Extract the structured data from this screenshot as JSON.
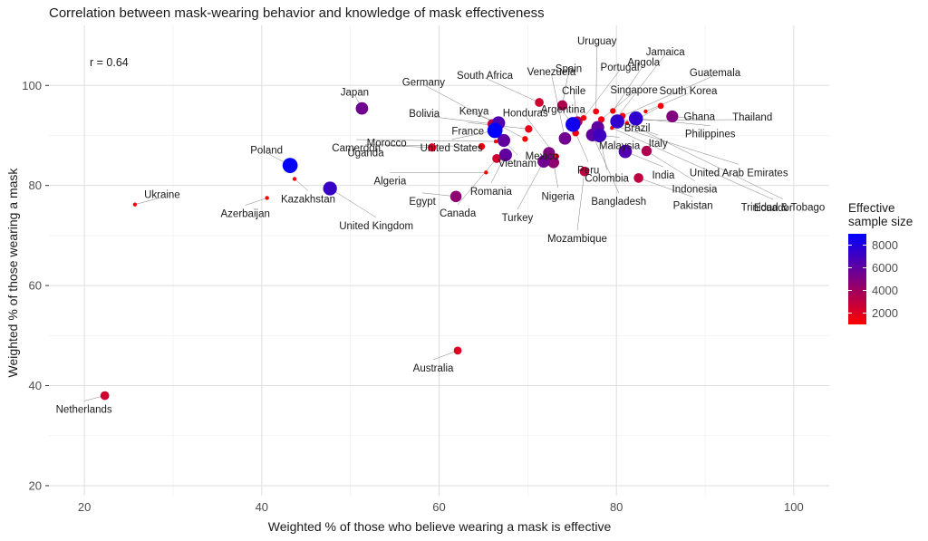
{
  "chart_data": {
    "type": "scatter",
    "title": "Correlation between mask-wearing behavior and knowledge of mask effectiveness",
    "xlabel": "Weighted % of those who believe wearing a mask is effective",
    "ylabel": "Weighted % of those wearing a mask",
    "xlim": [
      16,
      104
    ],
    "ylim": [
      18,
      112
    ],
    "x_ticks": [
      20,
      40,
      60,
      80,
      100
    ],
    "y_ticks": [
      20,
      40,
      60,
      80,
      100
    ],
    "grid": true,
    "annotation": "r = 0.64",
    "legend": {
      "title_lines": [
        "Effective",
        "sample size"
      ],
      "position": "right",
      "ticks": [
        2000,
        4000,
        6000,
        8000
      ],
      "range": [
        1000,
        9000
      ],
      "color_low": "#ff0000",
      "color_high": "#0000ff"
    },
    "points": [
      {
        "name": "Netherlands",
        "x": 22.3,
        "y": 38.0,
        "n": 2500
      },
      {
        "name": "Ukraine",
        "x": 25.7,
        "y": 76.2,
        "n": 1000
      },
      {
        "name": "Azerbaijan",
        "x": 40.6,
        "y": 77.5,
        "n": 1000
      },
      {
        "name": "Poland",
        "x": 43.2,
        "y": 84.0,
        "n": 8900
      },
      {
        "name": "Kazakhstan",
        "x": 43.7,
        "y": 81.3,
        "n": 1000
      },
      {
        "name": "United Kingdom",
        "x": 47.7,
        "y": 79.4,
        "n": 7200
      },
      {
        "name": "Japan",
        "x": 51.3,
        "y": 95.4,
        "n": 5500
      },
      {
        "name": "Morocco",
        "x": 59.2,
        "y": 87.6,
        "n": 2200
      },
      {
        "name": "Egypt",
        "x": 61.9,
        "y": 77.8,
        "n": 4500
      },
      {
        "name": "Australia",
        "x": 62.1,
        "y": 47.0,
        "n": 2000
      },
      {
        "name": "Algeria",
        "x": 65.3,
        "y": 82.6,
        "n": 1000
      },
      {
        "name": "Uganda",
        "x": 64.8,
        "y": 87.8,
        "n": 1500
      },
      {
        "name": "Bolivia",
        "x": 66.0,
        "y": 92.3,
        "n": 3000
      },
      {
        "name": "United States",
        "x": 66.3,
        "y": 91.0,
        "n": 9000
      },
      {
        "name": "Canada",
        "x": 66.5,
        "y": 85.4,
        "n": 2500
      },
      {
        "name": "Kenya",
        "x": 66.7,
        "y": 92.5,
        "n": 6500
      },
      {
        "name": "Cameroon",
        "x": 66.4,
        "y": 88.8,
        "n": 1000
      },
      {
        "name": "Romania",
        "x": 67.5,
        "y": 86.1,
        "n": 6000
      },
      {
        "name": "Vietnam",
        "x": 67.3,
        "y": 89.0,
        "n": 6000
      },
      {
        "name": "Germany",
        "x": 69.7,
        "y": 89.3,
        "n": 1200
      },
      {
        "name": "France",
        "x": 70.1,
        "y": 91.3,
        "n": 1800
      },
      {
        "name": "South Africa",
        "x": 71.3,
        "y": 96.6,
        "n": 2500
      },
      {
        "name": "Turkey",
        "x": 71.8,
        "y": 84.8,
        "n": 5500
      },
      {
        "name": "Mexico",
        "x": 72.4,
        "y": 86.5,
        "n": 5000
      },
      {
        "name": "Nigeria",
        "x": 72.9,
        "y": 84.6,
        "n": 4500
      },
      {
        "name": "Honduras",
        "x": 73.2,
        "y": 85.8,
        "n": 1300
      },
      {
        "name": "Venezuela",
        "x": 74.2,
        "y": 89.4,
        "n": 5500
      },
      {
        "name": "Spain",
        "x": 73.9,
        "y": 96.0,
        "n": 3500
      },
      {
        "name": "Argentina",
        "x": 75.1,
        "y": 92.2,
        "n": 8500
      },
      {
        "name": "Peru",
        "x": 75.4,
        "y": 90.5,
        "n": 1500
      },
      {
        "name": "Chile",
        "x": 75.6,
        "y": 92.8,
        "n": 3500
      },
      {
        "name": "Portugal",
        "x": 76.3,
        "y": 93.5,
        "n": 1200
      },
      {
        "name": "Mozambique",
        "x": 76.4,
        "y": 82.8,
        "n": 3000
      },
      {
        "name": "Bangladesh",
        "x": 77.3,
        "y": 90.1,
        "n": 6000
      },
      {
        "name": "Uruguay",
        "x": 77.7,
        "y": 94.8,
        "n": 1300
      },
      {
        "name": "Colombia",
        "x": 77.9,
        "y": 91.6,
        "n": 6000
      },
      {
        "name": "Malaysia",
        "x": 78.1,
        "y": 90.0,
        "n": 7000
      },
      {
        "name": "Singapore",
        "x": 78.3,
        "y": 93.2,
        "n": 1400
      },
      {
        "name": "Angola",
        "x": 79.6,
        "y": 94.9,
        "n": 1200
      },
      {
        "name": "Jamaica",
        "x": 79.9,
        "y": 93.2,
        "n": 1000
      },
      {
        "name": "Italy",
        "x": 80.1,
        "y": 92.8,
        "n": 7500
      },
      {
        "name": "Guatemala",
        "x": 80.7,
        "y": 93.9,
        "n": 1300
      },
      {
        "name": "India",
        "x": 81.0,
        "y": 86.8,
        "n": 6500
      },
      {
        "name": "Philippines",
        "x": 82.2,
        "y": 93.4,
        "n": 7500
      },
      {
        "name": "Pakistan",
        "x": 82.5,
        "y": 81.5,
        "n": 3000
      },
      {
        "name": "Indonesia",
        "x": 83.4,
        "y": 86.9,
        "n": 3500
      },
      {
        "name": "South Korea",
        "x": 83.3,
        "y": 94.8,
        "n": 1000
      },
      {
        "name": "Brazil",
        "x": 85.0,
        "y": 95.9,
        "n": 1300
      },
      {
        "name": "Trinidad & Tobago",
        "x": 81.2,
        "y": 92.5,
        "n": 1000
      },
      {
        "name": "Ghana",
        "x": 86.3,
        "y": 93.8,
        "n": 5000
      },
      {
        "name": "Thailand",
        "x": 80.0,
        "y": 93.0,
        "n": 1000
      },
      {
        "name": "United Arab Emirates",
        "x": 79.7,
        "y": 92.0,
        "n": 1000
      },
      {
        "name": "Ecuador",
        "x": 79.5,
        "y": 91.5,
        "n": 1000
      }
    ]
  }
}
